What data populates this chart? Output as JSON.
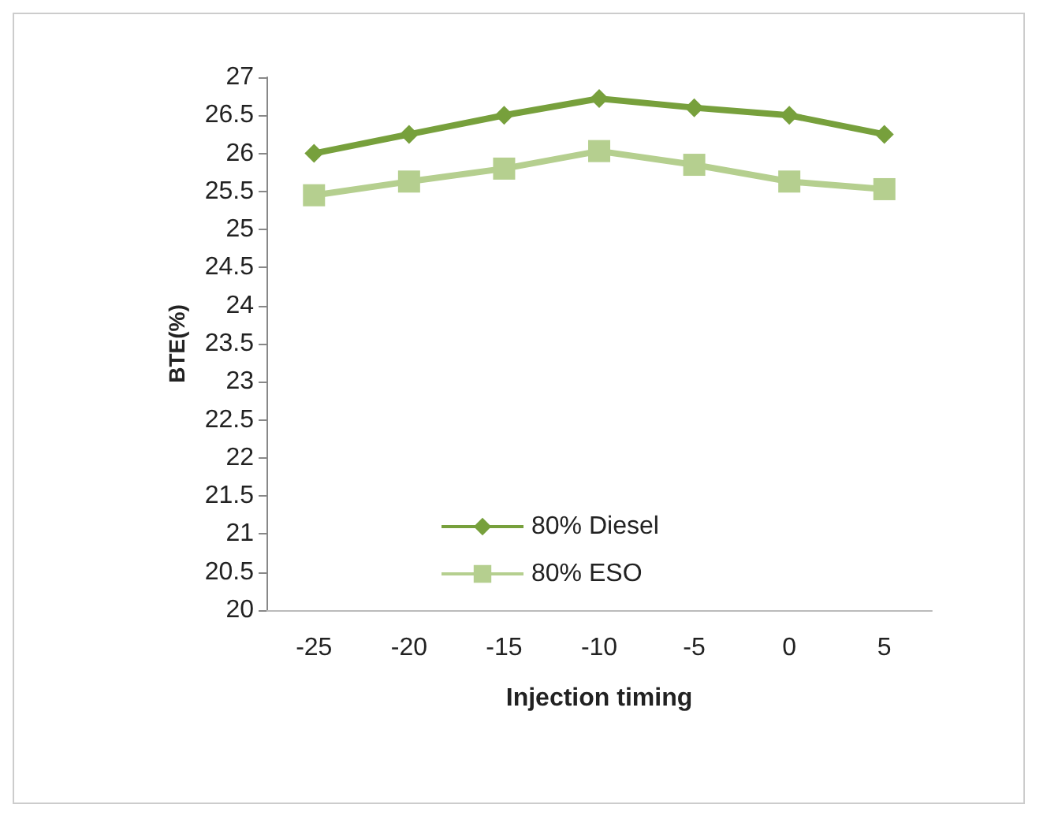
{
  "chart_data": {
    "type": "line",
    "xlabel": "Injection timing",
    "ylabel": "BTE(%)",
    "categories": [
      "-25",
      "-20",
      "-15",
      "-10",
      "-5",
      "0",
      "5"
    ],
    "series": [
      {
        "name": "80% Diesel",
        "color": "#77a03c",
        "marker": "diamond",
        "values": [
          26,
          26.25,
          26.5,
          26.72,
          26.6,
          26.5,
          26.25
        ]
      },
      {
        "name": "80% ESO",
        "color": "#b5cf8f",
        "marker": "square",
        "values": [
          25.45,
          25.63,
          25.8,
          26.03,
          25.85,
          25.63,
          25.53
        ]
      }
    ],
    "ylim": [
      20,
      27
    ],
    "yticks": [
      20,
      20.5,
      21,
      21.5,
      22,
      22.5,
      23,
      23.5,
      24,
      24.5,
      25,
      25.5,
      26,
      26.5,
      27
    ],
    "grid": false,
    "legend": "bottom left"
  }
}
